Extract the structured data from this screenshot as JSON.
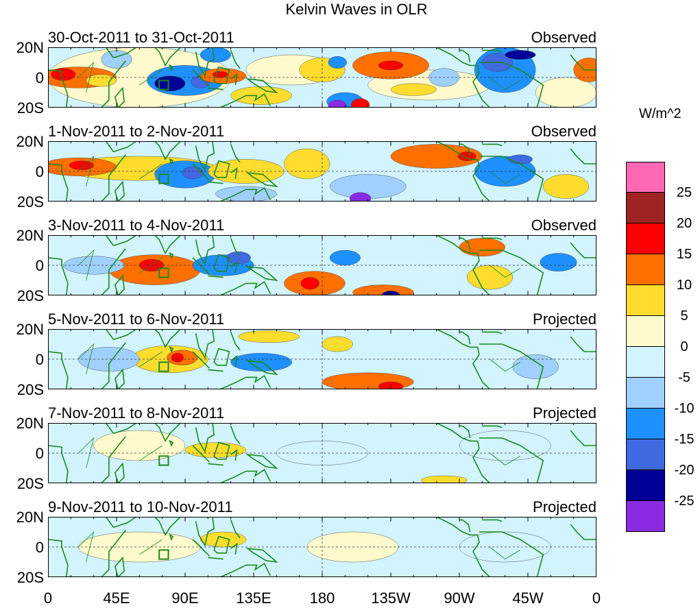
{
  "chart_data": {
    "type": "heatmap",
    "title": "Kelvin Waves in OLR",
    "xlabel": "",
    "ylabel": "",
    "xlim": [
      0,
      360
    ],
    "ylim": [
      -20,
      20
    ],
    "xticks": [
      "0",
      "45E",
      "90E",
      "135E",
      "180",
      "135W",
      "90W",
      "45W",
      "0"
    ],
    "yticks": [
      "20N",
      "0",
      "20S"
    ],
    "colorbar": {
      "unit": "W/m^2",
      "labels": [
        "25",
        "20",
        "15",
        "10",
        "5",
        "0",
        "-5",
        "-10",
        "-15",
        "-20",
        "-25"
      ],
      "levels": [
        25,
        20,
        15,
        10,
        5,
        0,
        -5,
        -10,
        -15,
        -20,
        -25
      ],
      "colors": [
        "#ff69b4",
        "#9e2424",
        "#ff0000",
        "#ff7000",
        "#ffdd2e",
        "#fffacd",
        "#d2f4ff",
        "#a0d0ff",
        "#1e90ff",
        "#4169e1",
        "#000096",
        "#8a2be2"
      ]
    },
    "panels": [
      {
        "left": "30-Oct-2011 to 31-Oct-2011",
        "right": "Observed",
        "blobs": [
          [
            60,
            0,
            60,
            20,
            2
          ],
          [
            160,
            5,
            30,
            10,
            3
          ],
          [
            250,
            -5,
            40,
            10,
            2
          ],
          [
            340,
            -10,
            20,
            10,
            3
          ],
          [
            20,
            0,
            25,
            7,
            12
          ],
          [
            10,
            2,
            8,
            4,
            17
          ],
          [
            35,
            -2,
            10,
            4,
            7
          ],
          [
            45,
            12,
            10,
            6,
            -7
          ],
          [
            90,
            -2,
            25,
            10,
            -13
          ],
          [
            80,
            -4,
            10,
            5,
            -22
          ],
          [
            100,
            -3,
            6,
            4,
            -17
          ],
          [
            115,
            1,
            15,
            5,
            12
          ],
          [
            113,
            2,
            5,
            2,
            17
          ],
          [
            110,
            15,
            10,
            5,
            -12
          ],
          [
            140,
            -12,
            20,
            6,
            7
          ],
          [
            180,
            5,
            15,
            8,
            7
          ],
          [
            225,
            8,
            25,
            9,
            12
          ],
          [
            225,
            8,
            8,
            3,
            17
          ],
          [
            190,
            10,
            6,
            4,
            -12
          ],
          [
            195,
            -16,
            12,
            6,
            -13
          ],
          [
            190,
            -19,
            6,
            4,
            -28
          ],
          [
            205,
            -18,
            6,
            4,
            17
          ],
          [
            300,
            5,
            20,
            15,
            -13
          ],
          [
            295,
            10,
            10,
            6,
            -17
          ],
          [
            310,
            15,
            10,
            3,
            -22
          ],
          [
            260,
            0,
            10,
            6,
            -7
          ],
          [
            240,
            -8,
            15,
            4,
            7
          ],
          [
            355,
            5,
            10,
            8,
            12
          ]
        ]
      },
      {
        "left": "1-Nov-2011 to 2-Nov-2011",
        "right": "Observed",
        "blobs": [
          [
            60,
            2,
            50,
            8,
            7
          ],
          [
            20,
            3,
            25,
            6,
            12
          ],
          [
            22,
            4,
            8,
            3,
            17
          ],
          [
            90,
            -2,
            20,
            9,
            -13
          ],
          [
            95,
            -1,
            7,
            4,
            -20
          ],
          [
            130,
            0,
            25,
            8,
            7
          ],
          [
            170,
            5,
            15,
            10,
            7
          ],
          [
            130,
            -15,
            20,
            5,
            -7
          ],
          [
            255,
            10,
            30,
            8,
            12
          ],
          [
            275,
            10,
            6,
            3,
            17
          ],
          [
            210,
            -10,
            25,
            8,
            -7
          ],
          [
            205,
            -18,
            7,
            4,
            -28
          ],
          [
            300,
            0,
            20,
            10,
            -13
          ],
          [
            310,
            8,
            8,
            3,
            -20
          ],
          [
            340,
            -10,
            15,
            8,
            7
          ]
        ]
      },
      {
        "left": "3-Nov-2011 to 4-Nov-2011",
        "right": "Observed",
        "blobs": [
          [
            70,
            -3,
            30,
            10,
            12
          ],
          [
            68,
            0,
            8,
            4,
            17
          ],
          [
            115,
            0,
            20,
            7,
            -13
          ],
          [
            125,
            5,
            8,
            4,
            -17
          ],
          [
            175,
            -12,
            20,
            8,
            12
          ],
          [
            172,
            -12,
            6,
            4,
            17
          ],
          [
            220,
            -18,
            20,
            5,
            12
          ],
          [
            225,
            -20,
            6,
            3,
            -22
          ],
          [
            195,
            5,
            10,
            5,
            -13
          ],
          [
            285,
            12,
            15,
            6,
            12
          ],
          [
            290,
            -8,
            15,
            8,
            7
          ],
          [
            335,
            2,
            12,
            6,
            -13
          ],
          [
            30,
            0,
            20,
            6,
            -7
          ]
        ]
      },
      {
        "left": "5-Nov-2011 to 6-Nov-2011",
        "right": "Projected",
        "blobs": [
          [
            80,
            0,
            25,
            9,
            7
          ],
          [
            88,
            1,
            10,
            5,
            12
          ],
          [
            85,
            1,
            4,
            3,
            17
          ],
          [
            140,
            -2,
            20,
            6,
            -13
          ],
          [
            210,
            -15,
            30,
            6,
            12
          ],
          [
            225,
            -18,
            8,
            3,
            17
          ],
          [
            190,
            10,
            10,
            5,
            7
          ],
          [
            145,
            15,
            20,
            4,
            7
          ],
          [
            40,
            0,
            20,
            8,
            -7
          ],
          [
            320,
            -5,
            15,
            8,
            -7
          ]
        ]
      },
      {
        "left": "7-Nov-2011 to 8-Nov-2011",
        "right": "Projected",
        "blobs": [
          [
            60,
            5,
            30,
            10,
            3
          ],
          [
            180,
            0,
            30,
            8,
            -3
          ],
          [
            300,
            5,
            30,
            10,
            -3
          ],
          [
            110,
            2,
            20,
            5,
            7
          ],
          [
            260,
            -18,
            15,
            3,
            7
          ]
        ]
      },
      {
        "left": "9-Nov-2011 to 10-Nov-2011",
        "right": "Projected",
        "blobs": [
          [
            60,
            0,
            40,
            10,
            3
          ],
          [
            200,
            0,
            30,
            10,
            3
          ],
          [
            300,
            0,
            30,
            10,
            -3
          ],
          [
            115,
            5,
            15,
            5,
            7
          ]
        ]
      }
    ]
  }
}
